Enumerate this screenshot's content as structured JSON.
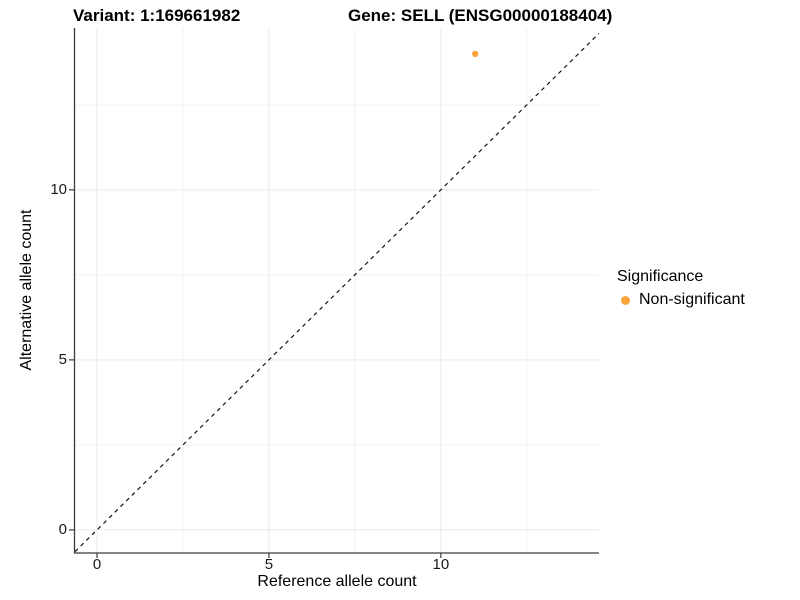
{
  "chart_data": {
    "type": "scatter",
    "titles": [
      "Variant: 1:169661982",
      "Gene: SELL (ENSG00000188404)"
    ],
    "xlabel": "Reference allele count",
    "ylabel": "Alternative allele count",
    "xlim": [
      -0.64,
      14.6
    ],
    "ylim": [
      -0.68,
      14.76
    ],
    "x_ticks": [
      "0",
      "5",
      "10"
    ],
    "x_tick_values": [
      0,
      5,
      10
    ],
    "y_ticks": [
      "0",
      "5",
      "10"
    ],
    "y_tick_values": [
      0,
      5,
      10
    ],
    "x_minor_gridlines": [
      2.5,
      7.5,
      12.5
    ],
    "y_minor_gridlines": [
      2.5,
      7.5,
      12.5
    ],
    "grid": "on",
    "identity_line": {
      "type": "abline",
      "slope": 1,
      "intercept": 0,
      "style": "dashed"
    },
    "series": [
      {
        "name": "Non-significant",
        "points": [
          {
            "x": 11,
            "y": 14
          }
        ]
      }
    ],
    "legend": {
      "position": "right",
      "title": "Significance",
      "entries": [
        {
          "label": "Non-significant",
          "color": "#FCA33B"
        }
      ]
    },
    "colors": {
      "point": "#FCA33B",
      "grid_major": "#e9e9e9",
      "grid_minor": "#f3f3f3",
      "axis_line": "#3c3c3c",
      "tick_mark": "#3c3c3c",
      "identity_line": "#111111"
    }
  }
}
